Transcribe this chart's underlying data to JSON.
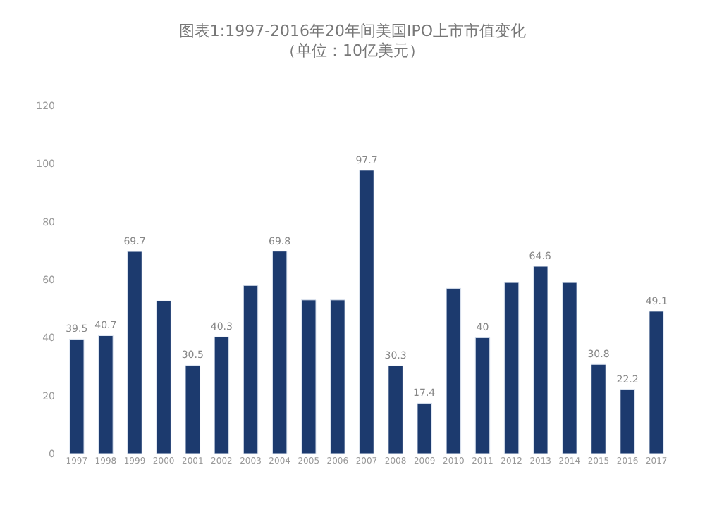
{
  "chart_data": {
    "type": "bar",
    "title": "图表1:1997-2016年20年间美国IPO上市市值变化",
    "subtitle": "（单位：10亿美元）",
    "categories": [
      "1997",
      "1998",
      "1999",
      "2000",
      "2001",
      "2002",
      "2003",
      "2004",
      "2005",
      "2006",
      "2007",
      "2008",
      "2009",
      "2010",
      "2011",
      "2012",
      "2013",
      "2014",
      "2015",
      "2016",
      "2017"
    ],
    "values": [
      39.5,
      40.7,
      69.7,
      52.7,
      30.5,
      40.3,
      58,
      69.8,
      53,
      53,
      97.7,
      30.3,
      17.4,
      57,
      40,
      59,
      64.6,
      59,
      30.8,
      22.2,
      49.1
    ],
    "value_labels": [
      "39.5",
      "40.7",
      "69.7",
      null,
      "30.5",
      "40.3",
      null,
      "69.8",
      null,
      null,
      "97.7",
      "30.3",
      "17.4",
      null,
      "40",
      null,
      "64.6",
      null,
      "30.8",
      "22.2",
      "49.1"
    ],
    "color": "#1c3a6e",
    "ylim": [
      0,
      120
    ],
    "yticks": [
      0,
      20,
      40,
      60,
      80,
      100,
      120
    ]
  }
}
